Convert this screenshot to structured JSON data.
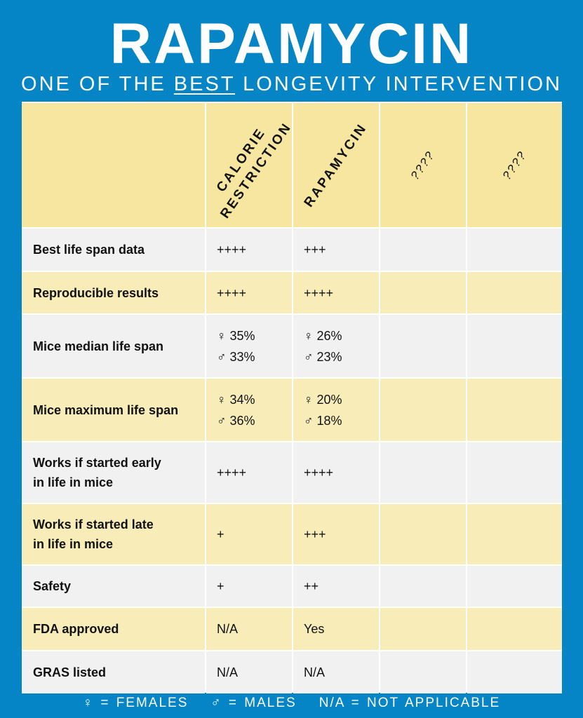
{
  "title": "RAPAMYCIN",
  "subtitle": {
    "pre": "ONE OF THE ",
    "emphasis": "BEST",
    "post": " LONGEVITY INTERVENTION"
  },
  "columns": [
    "CALORIE\nRESTRICTION",
    "RAPAMYCIN",
    "????",
    "????"
  ],
  "rows": [
    {
      "label": "Best life span data",
      "values": [
        "++++",
        "+++",
        "",
        ""
      ]
    },
    {
      "label": "Reproducible results",
      "values": [
        "++++",
        "++++",
        "",
        ""
      ]
    },
    {
      "label": "Mice median life span",
      "values": [
        "♀ 35%\n♂ 33%",
        "♀ 26%\n♂ 23%",
        "",
        ""
      ]
    },
    {
      "label": "Mice maximum life span",
      "values": [
        "♀ 34%\n♂ 36%",
        "♀ 20%\n♂ 18%",
        "",
        ""
      ]
    },
    {
      "label": "Works if started early\nin life in mice",
      "values": [
        "++++",
        "++++",
        "",
        ""
      ]
    },
    {
      "label": "Works if started late\nin life in mice",
      "values": [
        "+",
        "+++",
        "",
        ""
      ]
    },
    {
      "label": "Safety",
      "values": [
        "+",
        "++",
        "",
        ""
      ]
    },
    {
      "label": "FDA approved",
      "values": [
        "N/A",
        "Yes",
        "",
        ""
      ]
    },
    {
      "label": "GRAS listed",
      "values": [
        "N/A",
        "N/A",
        "",
        ""
      ]
    }
  ],
  "legend": [
    "♀ = FEMALES",
    "♂ = MALES",
    "N/A = NOT APPLICABLE"
  ],
  "colors": {
    "background": "#0585c5",
    "header": "#f6e6a0",
    "row_gray": "#f1f1f1",
    "row_yellow": "#f8ecb8"
  }
}
